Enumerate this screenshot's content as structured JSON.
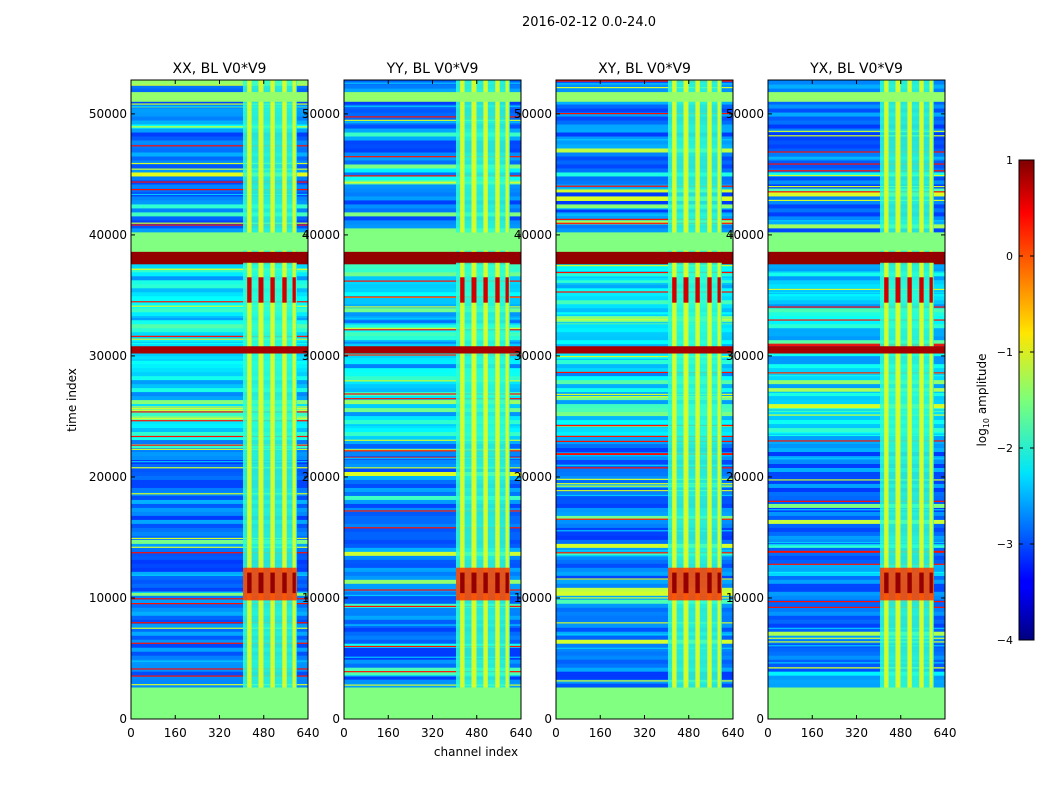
{
  "figure": {
    "suptitle": "2016-02-12 0.0-24.0"
  },
  "chart_data": {
    "type": "heatmap",
    "xlabel": "channel index",
    "ylabel": "time index",
    "xlim": [
      0,
      640
    ],
    "ylim": [
      0,
      52800
    ],
    "xticks": [
      0,
      160,
      320,
      480,
      640
    ],
    "xtick_labels": [
      "0",
      "160",
      "320",
      "480",
      "640"
    ],
    "yticks": [
      0,
      10000,
      20000,
      30000,
      40000,
      50000
    ],
    "ytick_labels": [
      "0",
      "10000",
      "20000",
      "30000",
      "40000",
      "50000"
    ],
    "panels": [
      {
        "title": "XX, BL V0*V9",
        "pol": "XX"
      },
      {
        "title": "YY, BL V0*V9",
        "pol": "YY"
      },
      {
        "title": "XY, BL V0*V9",
        "pol": "XY"
      },
      {
        "title": "YX, BL V0*V9",
        "pol": "YX"
      }
    ],
    "colorbar": {
      "label_base": "log",
      "label_sub": "10",
      "label_rest": " amplitude",
      "range": [
        -4,
        1
      ],
      "ticks": [
        1,
        0,
        -1,
        -2,
        -3,
        -4
      ],
      "tick_labels": [
        "1",
        "0",
        "−1",
        "−2",
        "−3",
        "−4"
      ],
      "colormap": "jet"
    },
    "rfi_channel_band": [
      405,
      600
    ],
    "rfi_channel_bars": [
      {
        "center": 428,
        "width": 16
      },
      {
        "center": 470,
        "width": 18
      },
      {
        "center": 512,
        "width": 16
      },
      {
        "center": 555,
        "width": 16
      },
      {
        "center": 590,
        "width": 12
      }
    ],
    "bright_time_block": [
      9800,
      12500
    ],
    "saturated_time_bands": [
      {
        "from": 37700,
        "to": 38600,
        "log_amp": 0.9
      },
      {
        "from": 30200,
        "to": 30800,
        "log_amp": 0.8
      }
    ],
    "flat_time_bands": [
      {
        "from": 0,
        "to": 2600,
        "log_amp": -1.5
      },
      {
        "from": 38700,
        "to": 40200,
        "log_amp": -1.5
      },
      {
        "from": 51000,
        "to": 51800,
        "log_amp": -1.4
      }
    ]
  }
}
